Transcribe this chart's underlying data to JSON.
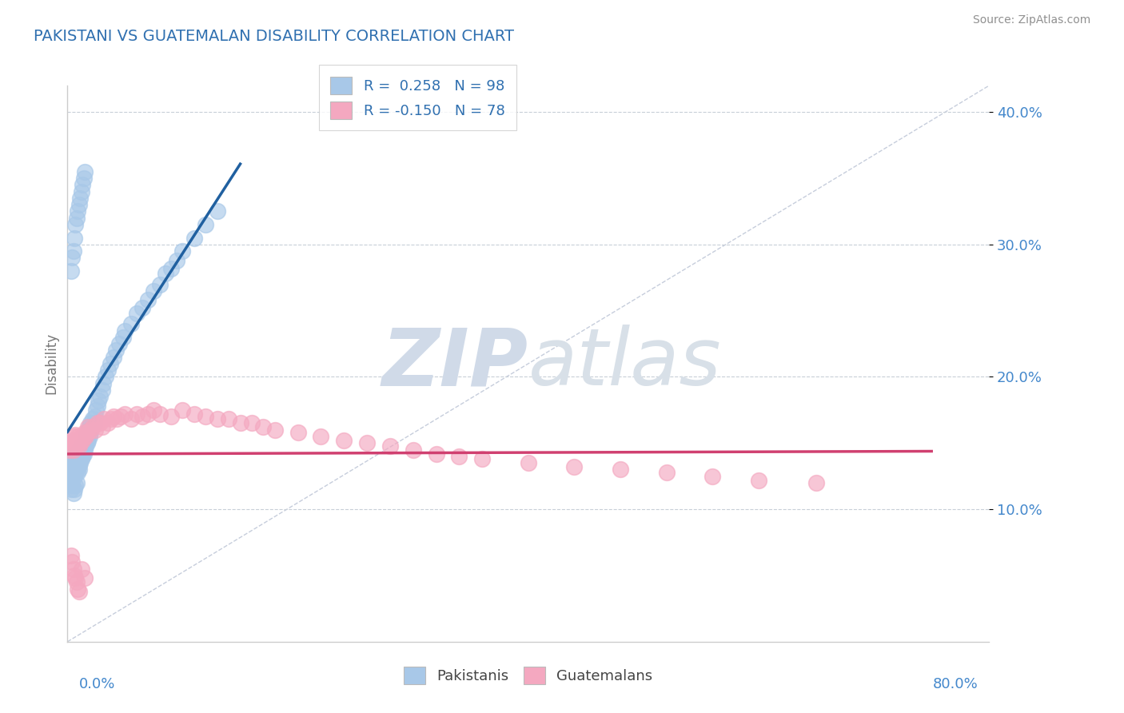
{
  "title": "PAKISTANI VS GUATEMALAN DISABILITY CORRELATION CHART",
  "source": "Source: ZipAtlas.com",
  "ylabel": "Disability",
  "xlim": [
    0.0,
    0.8
  ],
  "ylim": [
    0.0,
    0.42
  ],
  "yticks": [
    0.1,
    0.2,
    0.3,
    0.4
  ],
  "ytick_labels": [
    "10.0%",
    "20.0%",
    "30.0%",
    "40.0%"
  ],
  "pakistani_R": 0.258,
  "pakistani_N": 98,
  "guatemalan_R": -0.15,
  "guatemalan_N": 78,
  "blue_color": "#a8c8e8",
  "pink_color": "#f4a8c0",
  "blue_line_color": "#2060a0",
  "pink_line_color": "#d04070",
  "diagonal_color": "#c0c8d8",
  "grid_color": "#c8cfd8",
  "watermark_text": "ZIPatlas",
  "watermark_color": "#d0dae8",
  "title_color": "#3070b0",
  "source_color": "#909090",
  "axis_color": "#cccccc",
  "tick_label_color": "#4488cc",
  "legend_label_color": "#3070b0",
  "bottom_legend_color": "#444444",
  "pak_x": [
    0.002,
    0.003,
    0.003,
    0.004,
    0.004,
    0.004,
    0.005,
    0.005,
    0.005,
    0.006,
    0.006,
    0.006,
    0.006,
    0.007,
    0.007,
    0.007,
    0.008,
    0.008,
    0.008,
    0.009,
    0.009,
    0.01,
    0.01,
    0.01,
    0.01,
    0.01,
    0.011,
    0.011,
    0.012,
    0.012,
    0.012,
    0.013,
    0.013,
    0.014,
    0.014,
    0.015,
    0.015,
    0.016,
    0.016,
    0.017,
    0.017,
    0.018,
    0.018,
    0.019,
    0.019,
    0.02,
    0.02,
    0.021,
    0.022,
    0.023,
    0.024,
    0.025,
    0.026,
    0.027,
    0.028,
    0.03,
    0.031,
    0.033,
    0.035,
    0.037,
    0.04,
    0.042,
    0.045,
    0.048,
    0.05,
    0.055,
    0.06,
    0.065,
    0.07,
    0.075,
    0.08,
    0.085,
    0.09,
    0.095,
    0.1,
    0.11,
    0.12,
    0.13,
    0.002,
    0.003,
    0.004,
    0.005,
    0.006,
    0.007,
    0.008,
    0.003,
    0.004,
    0.005,
    0.006,
    0.007,
    0.008,
    0.009,
    0.01,
    0.011,
    0.012,
    0.013,
    0.014,
    0.015
  ],
  "pak_y": [
    0.13,
    0.125,
    0.132,
    0.128,
    0.135,
    0.14,
    0.13,
    0.133,
    0.138,
    0.125,
    0.13,
    0.132,
    0.135,
    0.128,
    0.132,
    0.138,
    0.13,
    0.133,
    0.136,
    0.128,
    0.132,
    0.13,
    0.133,
    0.136,
    0.14,
    0.145,
    0.135,
    0.138,
    0.138,
    0.142,
    0.148,
    0.14,
    0.145,
    0.142,
    0.148,
    0.145,
    0.15,
    0.148,
    0.155,
    0.15,
    0.158,
    0.152,
    0.16,
    0.155,
    0.163,
    0.158,
    0.165,
    0.162,
    0.168,
    0.165,
    0.17,
    0.175,
    0.178,
    0.182,
    0.185,
    0.19,
    0.195,
    0.2,
    0.205,
    0.21,
    0.215,
    0.22,
    0.225,
    0.23,
    0.235,
    0.24,
    0.248,
    0.252,
    0.258,
    0.265,
    0.27,
    0.278,
    0.282,
    0.288,
    0.295,
    0.305,
    0.315,
    0.325,
    0.12,
    0.115,
    0.118,
    0.112,
    0.115,
    0.118,
    0.12,
    0.28,
    0.29,
    0.295,
    0.305,
    0.315,
    0.32,
    0.325,
    0.33,
    0.335,
    0.34,
    0.345,
    0.35,
    0.355
  ],
  "gua_x": [
    0.002,
    0.003,
    0.004,
    0.005,
    0.005,
    0.006,
    0.006,
    0.007,
    0.007,
    0.008,
    0.008,
    0.009,
    0.009,
    0.01,
    0.01,
    0.011,
    0.012,
    0.013,
    0.014,
    0.015,
    0.016,
    0.017,
    0.018,
    0.02,
    0.022,
    0.024,
    0.026,
    0.028,
    0.03,
    0.032,
    0.035,
    0.038,
    0.04,
    0.043,
    0.046,
    0.05,
    0.055,
    0.06,
    0.065,
    0.07,
    0.075,
    0.08,
    0.09,
    0.1,
    0.11,
    0.12,
    0.13,
    0.14,
    0.15,
    0.16,
    0.17,
    0.18,
    0.2,
    0.22,
    0.24,
    0.26,
    0.28,
    0.3,
    0.32,
    0.34,
    0.36,
    0.4,
    0.44,
    0.48,
    0.52,
    0.56,
    0.6,
    0.65,
    0.003,
    0.004,
    0.005,
    0.006,
    0.007,
    0.008,
    0.009,
    0.01,
    0.012,
    0.015
  ],
  "gua_y": [
    0.145,
    0.148,
    0.15,
    0.145,
    0.152,
    0.148,
    0.155,
    0.15,
    0.156,
    0.148,
    0.152,
    0.15,
    0.155,
    0.148,
    0.152,
    0.15,
    0.155,
    0.152,
    0.155,
    0.158,
    0.155,
    0.158,
    0.162,
    0.16,
    0.162,
    0.16,
    0.165,
    0.165,
    0.162,
    0.168,
    0.165,
    0.168,
    0.17,
    0.168,
    0.17,
    0.172,
    0.168,
    0.172,
    0.17,
    0.172,
    0.175,
    0.172,
    0.17,
    0.175,
    0.172,
    0.17,
    0.168,
    0.168,
    0.165,
    0.165,
    0.162,
    0.16,
    0.158,
    0.155,
    0.152,
    0.15,
    0.148,
    0.145,
    0.142,
    0.14,
    0.138,
    0.135,
    0.132,
    0.13,
    0.128,
    0.125,
    0.122,
    0.12,
    0.065,
    0.06,
    0.055,
    0.05,
    0.048,
    0.045,
    0.04,
    0.038,
    0.055,
    0.048
  ]
}
